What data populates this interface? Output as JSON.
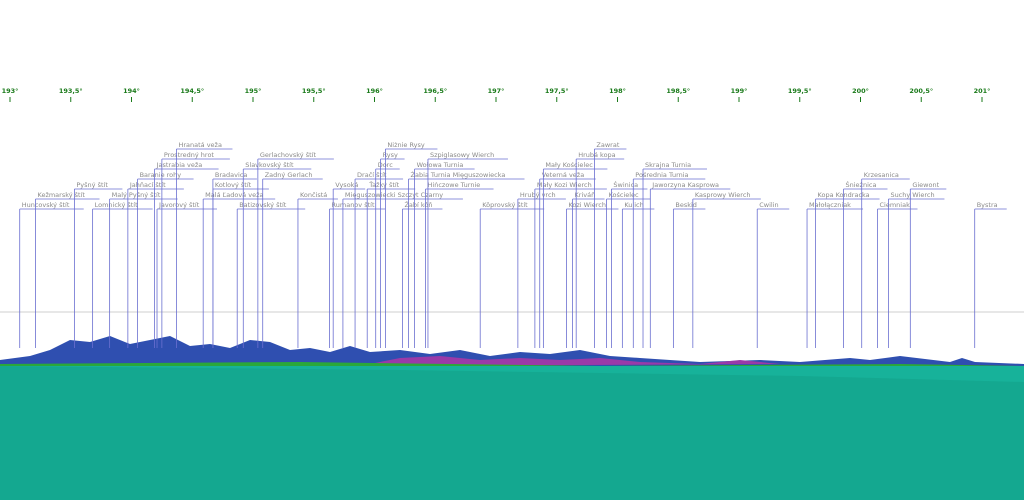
{
  "chart_data": {
    "type": "panorama",
    "xlim": [
      192.92,
      201.35
    ],
    "xticks": [
      {
        "value": 193,
        "label": "193°"
      },
      {
        "value": 193.5,
        "label": "193,5°"
      },
      {
        "value": 194,
        "label": "194°"
      },
      {
        "value": 194.5,
        "label": "194,5°"
      },
      {
        "value": 195,
        "label": "195°"
      },
      {
        "value": 195.5,
        "label": "195,5°"
      },
      {
        "value": 196,
        "label": "196°"
      },
      {
        "value": 196.5,
        "label": "196,5°"
      },
      {
        "value": 197,
        "label": "197°"
      },
      {
        "value": 197.5,
        "label": "197,5°"
      },
      {
        "value": 198,
        "label": "198°"
      },
      {
        "value": 198.5,
        "label": "198,5°"
      },
      {
        "value": 199,
        "label": "199°"
      },
      {
        "value": 199.5,
        "label": "199,5°"
      },
      {
        "value": 200,
        "label": "200°"
      },
      {
        "value": 200.5,
        "label": "200,5°"
      },
      {
        "value": 201,
        "label": "201°"
      }
    ],
    "categories": [
      "Huncovský štít",
      "Kežmarský štít",
      "Pyšný štít",
      "Lomnický štít",
      "Malý Pyšný štít",
      "Jahňací štít",
      "Baranie rohy",
      "Jastrabia veža",
      "Javorový štít",
      "Prostredný hrot",
      "Hranatá veža",
      "Malá Ľadová veža",
      "Kotlový štít",
      "Bradavica",
      "Batizovský štít",
      "Slavkovský štít",
      "Gerlachovský štít",
      "Zadný Gerlach",
      "Končistá",
      "Rumanov štít",
      "Vysoká",
      "Mięguszowiecki Szczyt Czarny",
      "Dračí štít",
      "Ťažký štít",
      "Dorc",
      "Rysy",
      "Niżnie Rysy",
      "Žabí kôň",
      "Żabia Turnia Mięguszowiecka",
      "Wołowa Turnia",
      "Hińczowe Turnie",
      "Szpiglasowy Wierch",
      "Kôprovský štít",
      "Hrubý vrch",
      "Mały Kozi Wierch",
      "Veterná veža",
      "Mały Kościelec",
      "Kozi Wierch",
      "Kriváň",
      "Hrubá kopa",
      "Zawrat",
      "Kościelec",
      "Świnica",
      "Kulich",
      "Pośrednia Turnia",
      "Skrajna Turnia",
      "Jaworzyna Kasprowa",
      "Beskid",
      "Kasprowy Wierch",
      "Cwilin",
      "Małołączniak",
      "Kopa Kondracka",
      "Śnieżnica",
      "Krzesanica",
      "Ciemniak",
      "Suchy Wierch",
      "Giewont",
      "Bystra"
    ],
    "values": [
      193.08,
      193.21,
      193.53,
      193.68,
      193.82,
      193.97,
      194.05,
      194.19,
      194.21,
      194.25,
      194.37,
      194.59,
      194.67,
      194.67,
      194.87,
      194.92,
      195.04,
      195.08,
      195.37,
      195.63,
      195.66,
      195.74,
      195.84,
      195.94,
      196.01,
      196.05,
      196.09,
      196.23,
      196.28,
      196.33,
      196.42,
      196.44,
      196.87,
      197.18,
      197.32,
      197.36,
      197.39,
      197.58,
      197.63,
      197.66,
      197.81,
      197.91,
      197.95,
      198.04,
      198.13,
      198.21,
      198.27,
      198.46,
      198.62,
      199.15,
      199.56,
      199.63,
      199.86,
      200.01,
      200.14,
      200.23,
      200.41,
      200.94
    ],
    "color": "#6a6fd0"
  }
}
